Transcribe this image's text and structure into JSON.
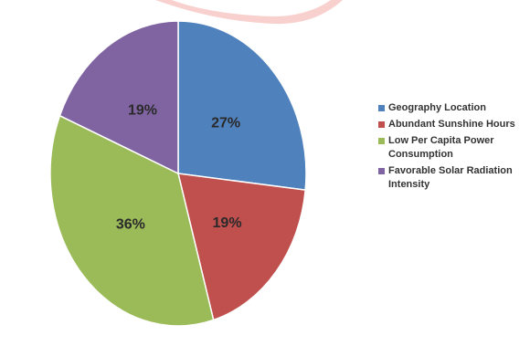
{
  "chart_data": {
    "type": "pie",
    "slices": [
      {
        "label": "Geography Location",
        "value": 27,
        "display": "27%",
        "color": "#4f81bd"
      },
      {
        "label": "Abundant Sunshine Hours",
        "value": 19,
        "display": "19%",
        "color": "#c0504d"
      },
      {
        "label": "Low Per Capita Power Consumption",
        "value": 36,
        "display": "36%",
        "color": "#9bbb59"
      },
      {
        "label": "Favorable Solar Radiation Intensity",
        "value": 19,
        "display": "19%",
        "color": "#8064a2"
      }
    ],
    "legend_position": "right",
    "start_angle": "12 o'clock",
    "direction": "clockwise"
  },
  "legend": {
    "items": [
      {
        "label": "Geography Location",
        "color": "#4f81bd"
      },
      {
        "label": "Abundant Sunshine Hours",
        "color": "#c0504d"
      },
      {
        "label": "Low Per Capita Power Consumption",
        "color": "#9bbb59"
      },
      {
        "label": "Favorable Solar Radiation Intensity",
        "color": "#8064a2"
      }
    ]
  },
  "colors": {
    "decoration": "#f2a9a6",
    "slice_border": "#ffffff"
  }
}
